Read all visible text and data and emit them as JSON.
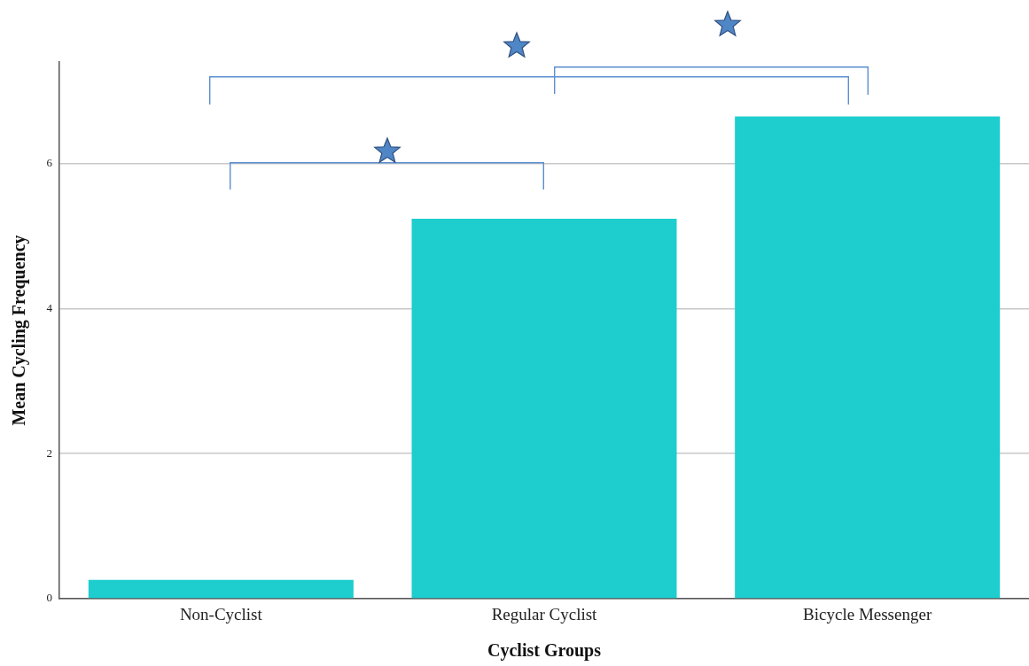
{
  "chart_data": {
    "type": "bar",
    "xlabel": "Cyclist Groups",
    "ylabel": "Mean Cycling Frequency",
    "categories": [
      "Non-Cyclist",
      "Regular Cyclist",
      "Bicycle Messenger"
    ],
    "values": [
      0.26,
      5.24,
      6.65
    ],
    "color": "#1ecdce",
    "ylim": [
      0,
      7.4
    ],
    "yticks": [
      0,
      2,
      4,
      6
    ],
    "grid": "y"
  }
}
